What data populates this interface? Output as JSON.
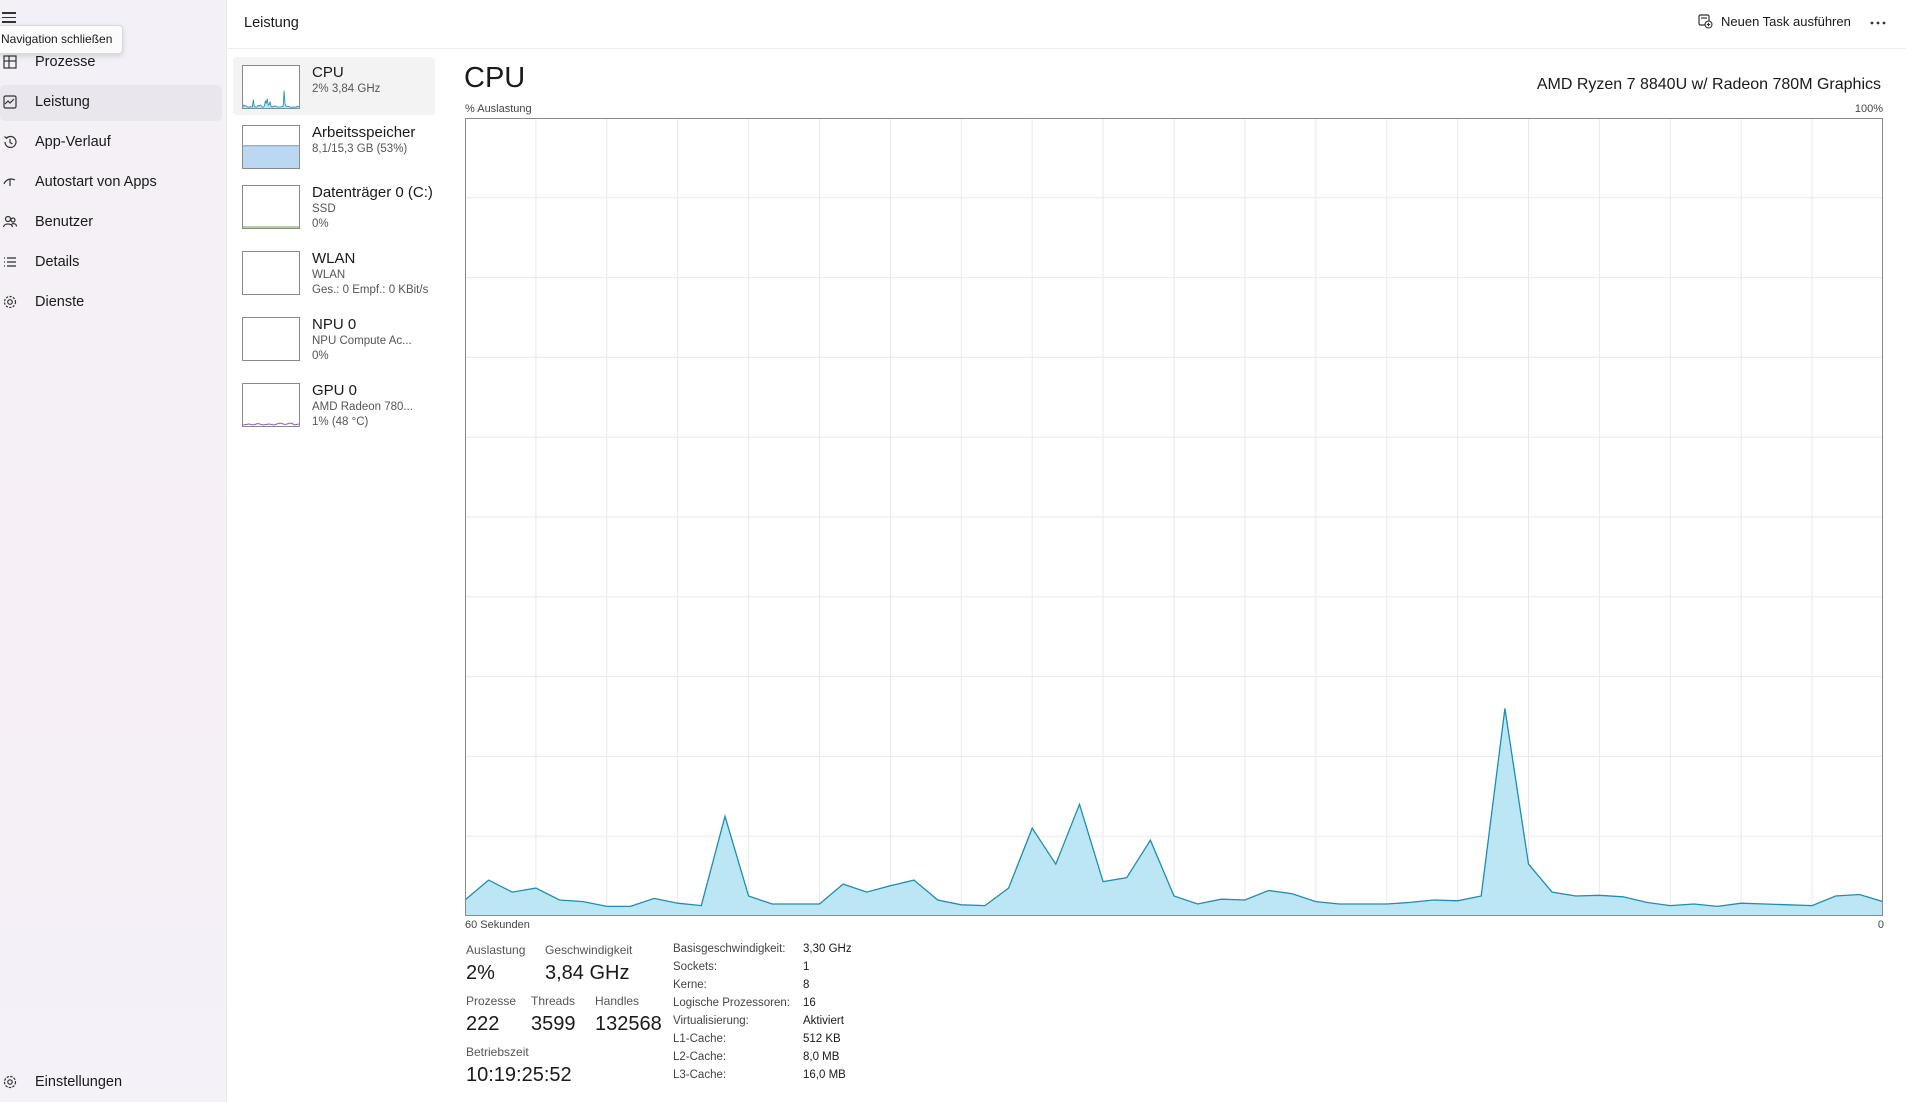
{
  "nav": {
    "tooltip": "Navigation schließen",
    "items": [
      {
        "label": "Prozesse",
        "icon": "processes-icon"
      },
      {
        "label": "Leistung",
        "icon": "performance-icon"
      },
      {
        "label": "App-Verlauf",
        "icon": "history-icon"
      },
      {
        "label": "Autostart von Apps",
        "icon": "startup-icon"
      },
      {
        "label": "Benutzer",
        "icon": "users-icon"
      },
      {
        "label": "Details",
        "icon": "details-icon"
      },
      {
        "label": "Dienste",
        "icon": "services-icon"
      }
    ],
    "settings": "Einstellungen"
  },
  "header": {
    "title": "Leistung",
    "new_task": "Neuen Task ausführen"
  },
  "perf_items": [
    {
      "name": "CPU",
      "line2": "2% 3,84 GHz",
      "line3": ""
    },
    {
      "name": "Arbeitsspeicher",
      "line2": "8,1/15,3 GB (53%)",
      "line3": ""
    },
    {
      "name": "Datenträger 0 (C:)",
      "line2": "SSD",
      "line3": "0%"
    },
    {
      "name": "WLAN",
      "line2": "WLAN",
      "line3": "Ges.: 0 Empf.: 0 KBit/s"
    },
    {
      "name": "NPU 0",
      "line2": "NPU Compute Ac...",
      "line3": "0%"
    },
    {
      "name": "GPU 0",
      "line2": "AMD Radeon 780...",
      "line3": "1% (48 °C)"
    }
  ],
  "detail": {
    "title": "CPU",
    "model": "AMD Ryzen 7 8840U w/ Radeon 780M Graphics",
    "y_label": "% Auslastung",
    "y_max_label": "100%",
    "x_left_label": "60 Sekunden",
    "x_right_label": "0"
  },
  "stats": {
    "auslastung_label": "Auslastung",
    "auslastung": "2%",
    "geschwindigkeit_label": "Geschwindigkeit",
    "geschwindigkeit": "3,84 GHz",
    "prozesse_label": "Prozesse",
    "prozesse": "222",
    "threads_label": "Threads",
    "threads": "3599",
    "handles_label": "Handles",
    "handles": "132568",
    "betriebszeit_label": "Betriebszeit",
    "betriebszeit": "10:19:25:52"
  },
  "specs": [
    {
      "k": "Basisgeschwindigkeit:",
      "v": "3,30 GHz"
    },
    {
      "k": "Sockets:",
      "v": "1"
    },
    {
      "k": "Kerne:",
      "v": "8"
    },
    {
      "k": "Logische Prozessoren:",
      "v": "16"
    },
    {
      "k": "Virtualisierung:",
      "v": "Aktiviert"
    },
    {
      "k": "L1-Cache:",
      "v": "512 KB"
    },
    {
      "k": "L2-Cache:",
      "v": "8,0 MB"
    },
    {
      "k": "L3-Cache:",
      "v": "16,0 MB"
    }
  ],
  "colors": {
    "cpu_line": "#1a8fb5",
    "cpu_fill": "#bde6f5",
    "memory_fill": "#bcd7f2",
    "memory_line": "#6b9bd0",
    "gpu_line": "#8b5cb8",
    "grid": "#eaeaea",
    "accent": "#005fb8"
  },
  "chart_data": {
    "type": "area",
    "title": "",
    "xlabel": "60 Sekunden",
    "ylabel": "% Auslastung",
    "ylim": [
      0,
      100
    ],
    "xlim": [
      60,
      0
    ],
    "grid": true,
    "series": [
      {
        "name": "",
        "values": [
          2,
          4.5,
          3,
          3.5,
          2,
          1.8,
          1.2,
          1.2,
          2.2,
          1.6,
          1.3,
          12.5,
          2.5,
          1.5,
          1.5,
          1.5,
          4,
          3,
          3.8,
          4.5,
          2,
          1.4,
          1.3,
          3.5,
          11,
          6.5,
          14,
          4.3,
          4.8,
          9.5,
          2.5,
          1.5,
          2.1,
          2,
          3.2,
          2.8,
          1.8,
          1.5,
          1.5,
          1.5,
          1.7,
          2,
          1.9,
          2.5,
          26,
          6.5,
          3,
          2.5,
          2.6,
          2.4,
          1.7,
          1.3,
          1.5,
          1.2,
          1.6,
          1.5,
          1.4,
          1.3,
          2.5,
          2.7,
          1.8
        ]
      }
    ]
  }
}
